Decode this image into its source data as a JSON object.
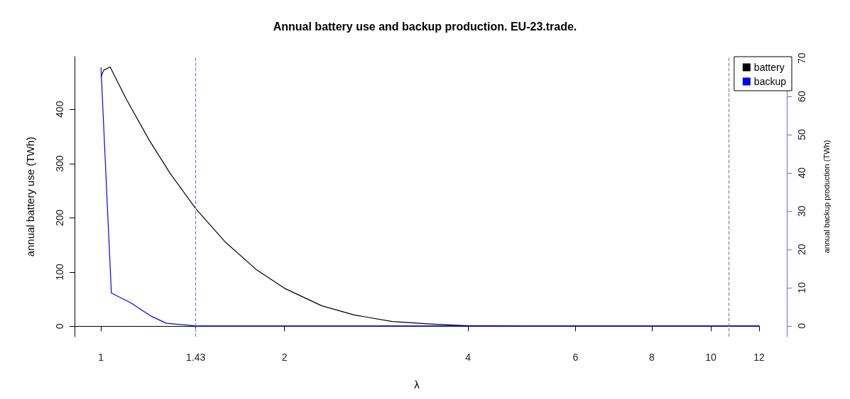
{
  "chart_data": {
    "type": "line",
    "title": "Annual battery use and backup production. EU-23.trade.",
    "xlabel": "λ",
    "ylabel": "annual battery use (TWh)",
    "y2label": "annual backup production (TWh)",
    "log": "x",
    "xlim": [
      0.905,
      12
    ],
    "xticks": [
      1,
      1.43,
      2,
      4,
      6,
      8,
      10,
      12
    ],
    "ylim": [
      -19,
      497
    ],
    "yticks": [
      0,
      100,
      200,
      300,
      400
    ],
    "y2lim": [
      -2.8,
      70.4
    ],
    "y2ticks": [
      0,
      10,
      20,
      30,
      40,
      50,
      60,
      70
    ],
    "grid": false,
    "legend": "top right",
    "marker": "none",
    "line_style": "solid",
    "series": [
      {
        "name": "battery",
        "color": "#000000",
        "x": [
          1,
          1.01,
          1.035,
          1.1,
          1.2,
          1.3,
          1.43,
          1.6,
          1.8,
          2,
          2.3,
          2.6,
          3,
          3.5,
          4,
          5,
          6,
          8,
          10,
          12
        ],
        "values": [
          460,
          472,
          478,
          419,
          343,
          281,
          217,
          155,
          104,
          70,
          38,
          21,
          9,
          4,
          1,
          0,
          0,
          0,
          0,
          0
        ]
      },
      {
        "name": "backup",
        "color": "#0000ff",
        "axis": "y2",
        "x": [
          1,
          1.04,
          1.12,
          1.21,
          1.28,
          1.43,
          2,
          4,
          12
        ],
        "values": [
          67.5,
          8.6,
          6,
          2.5,
          0.7,
          0,
          0,
          0,
          0
        ]
      }
    ],
    "ref_lines": [
      {
        "axis": "x",
        "value": 1.43,
        "color": "#7777ff",
        "line_style": "dashed"
      },
      {
        "axis": "x",
        "value": 10.7,
        "color": "#888888",
        "line_style": "dashed"
      }
    ]
  }
}
